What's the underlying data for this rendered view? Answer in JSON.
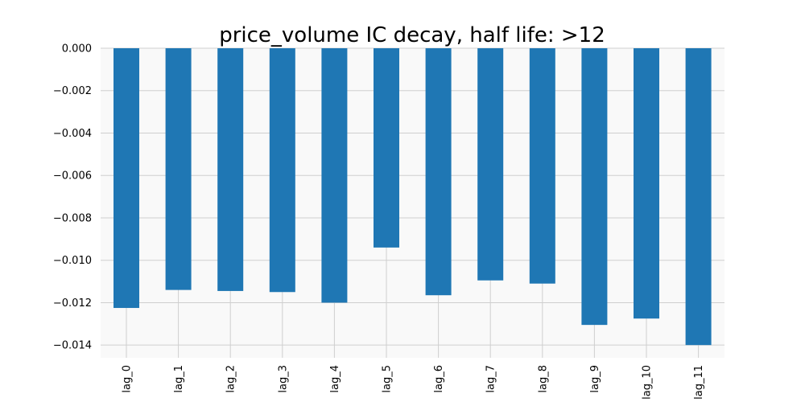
{
  "chart_data": {
    "type": "bar",
    "title": "price_volume IC decay, half life: >12",
    "xlabel": "",
    "ylabel": "",
    "categories": [
      "lag_0",
      "lag_1",
      "lag_2",
      "lag_3",
      "lag_4",
      "lag_5",
      "lag_6",
      "lag_7",
      "lag_8",
      "lag_9",
      "lag_10",
      "lag_11"
    ],
    "values": [
      -0.01225,
      -0.0114,
      -0.01145,
      -0.0115,
      -0.012,
      -0.0094,
      -0.01165,
      -0.01095,
      -0.0111,
      -0.01305,
      -0.01275,
      -0.014
    ],
    "yticks": [
      0.0,
      -0.002,
      -0.004,
      -0.006,
      -0.008,
      -0.01,
      -0.012,
      -0.014
    ],
    "ytick_labels": [
      "0.000",
      "−0.002",
      "−0.004",
      "−0.006",
      "−0.008",
      "−0.010",
      "−0.012",
      "−0.014"
    ],
    "ylim": [
      -0.0146,
      0.0
    ],
    "grid": true,
    "colors": {
      "bar": "#1f77b4",
      "plot_background": "#f9f9f9",
      "grid": "#cfcfcf"
    }
  }
}
